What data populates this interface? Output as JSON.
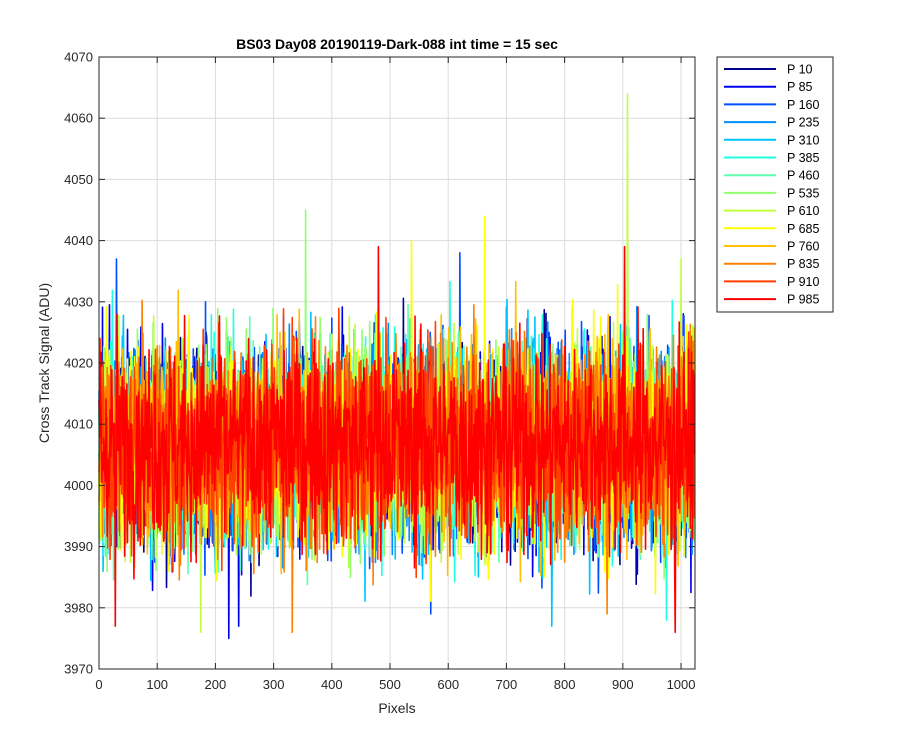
{
  "chart_data": {
    "type": "line",
    "title": "BS03 Day08 20190119-Dark-088 int time = 15 sec",
    "xlabel": "Pixels",
    "ylabel": "Cross Track Signal (ADU)",
    "xlim": [
      0,
      1024
    ],
    "ylim": [
      3970,
      4070
    ],
    "xticks": [
      0,
      100,
      200,
      300,
      400,
      500,
      600,
      700,
      800,
      900,
      1000
    ],
    "yticks": [
      3970,
      3980,
      3990,
      4000,
      4010,
      4020,
      4030,
      4040,
      4050,
      4060,
      4070
    ],
    "grid": true,
    "legend_position": "outside-right",
    "noise": {
      "n_points": 1024,
      "mean": 4007,
      "min": 3975,
      "max": 4064
    },
    "series": [
      {
        "name": "P 10",
        "color": "#00008f"
      },
      {
        "name": "P 85",
        "color": "#0000ef"
      },
      {
        "name": "P 160",
        "color": "#0050ff"
      },
      {
        "name": "P 235",
        "color": "#0090ff"
      },
      {
        "name": "P 310",
        "color": "#00c4ff"
      },
      {
        "name": "P 385",
        "color": "#20ffdf"
      },
      {
        "name": "P 460",
        "color": "#60ffb0"
      },
      {
        "name": "P 535",
        "color": "#90ff70"
      },
      {
        "name": "P 610",
        "color": "#c0ff40"
      },
      {
        "name": "P 685",
        "color": "#ffff00"
      },
      {
        "name": "P 760",
        "color": "#ffc000"
      },
      {
        "name": "P 835",
        "color": "#ff8000"
      },
      {
        "name": "P 910",
        "color": "#ff4000"
      },
      {
        "name": "P 985",
        "color": "#ff0000"
      }
    ],
    "peaks": [
      {
        "series": "P 610",
        "x": 908,
        "y": 4064
      },
      {
        "series": "P 535",
        "x": 355,
        "y": 4045
      },
      {
        "series": "P 685",
        "x": 663,
        "y": 4044
      },
      {
        "series": "P 685",
        "x": 537,
        "y": 4040
      },
      {
        "series": "P 985",
        "x": 480,
        "y": 4039
      },
      {
        "series": "P 985",
        "x": 903,
        "y": 4039
      },
      {
        "series": "P 160",
        "x": 30,
        "y": 4037
      },
      {
        "series": "P 610",
        "x": 1000,
        "y": 4037
      },
      {
        "series": "P 160",
        "x": 620,
        "y": 4038
      },
      {
        "series": "P 85",
        "x": 223,
        "y": 3975
      },
      {
        "series": "P 85",
        "x": 240,
        "y": 3977
      },
      {
        "series": "P 835",
        "x": 332,
        "y": 3976
      },
      {
        "series": "P 985",
        "x": 28,
        "y": 3977
      },
      {
        "series": "P 610",
        "x": 175,
        "y": 3976
      },
      {
        "series": "P 835",
        "x": 873,
        "y": 3979
      },
      {
        "series": "P 985",
        "x": 990,
        "y": 3976
      },
      {
        "series": "P 385",
        "x": 975,
        "y": 3978
      },
      {
        "series": "P 310",
        "x": 778,
        "y": 3977
      },
      {
        "series": "P 160",
        "x": 570,
        "y": 3979
      }
    ]
  }
}
